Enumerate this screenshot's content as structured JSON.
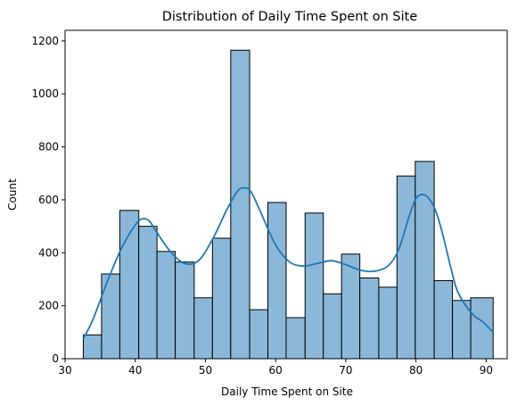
{
  "chart_data": {
    "type": "bar",
    "subtype": "histogram-with-kde",
    "title": "Distribution of Daily Time Spent on Site",
    "xlabel": "Daily Time Spent on Site",
    "ylabel": "Count",
    "xlim": [
      30,
      93
    ],
    "ylim": [
      0,
      1240
    ],
    "xticks": [
      30,
      40,
      50,
      60,
      70,
      80,
      90
    ],
    "yticks": [
      0,
      200,
      400,
      600,
      800,
      1000,
      1200
    ],
    "grid": false,
    "legend": "none",
    "bar_color": "#8bb8d9",
    "bar_edge_color": "#000000",
    "line_color": "#1f77b4",
    "bins": [
      {
        "x0": 32.6,
        "x1": 35.2,
        "count": 90
      },
      {
        "x0": 35.2,
        "x1": 37.8,
        "count": 320
      },
      {
        "x0": 37.8,
        "x1": 40.5,
        "count": 560
      },
      {
        "x0": 40.5,
        "x1": 43.1,
        "count": 500
      },
      {
        "x0": 43.1,
        "x1": 45.7,
        "count": 405
      },
      {
        "x0": 45.7,
        "x1": 48.4,
        "count": 365
      },
      {
        "x0": 48.4,
        "x1": 51.0,
        "count": 230
      },
      {
        "x0": 51.0,
        "x1": 53.6,
        "count": 455
      },
      {
        "x0": 53.6,
        "x1": 56.3,
        "count": 1165
      },
      {
        "x0": 56.3,
        "x1": 58.9,
        "count": 185
      },
      {
        "x0": 58.9,
        "x1": 61.5,
        "count": 590
      },
      {
        "x0": 61.5,
        "x1": 64.2,
        "count": 155
      },
      {
        "x0": 64.2,
        "x1": 66.8,
        "count": 550
      },
      {
        "x0": 66.8,
        "x1": 69.4,
        "count": 245
      },
      {
        "x0": 69.4,
        "x1": 72.0,
        "count": 395
      },
      {
        "x0": 72.0,
        "x1": 74.7,
        "count": 305
      },
      {
        "x0": 74.7,
        "x1": 77.3,
        "count": 270
      },
      {
        "x0": 77.3,
        "x1": 79.9,
        "count": 690
      },
      {
        "x0": 79.9,
        "x1": 82.6,
        "count": 745
      },
      {
        "x0": 82.6,
        "x1": 85.2,
        "count": 295
      },
      {
        "x0": 85.2,
        "x1": 87.8,
        "count": 220
      },
      {
        "x0": 87.8,
        "x1": 91.0,
        "count": 230
      }
    ],
    "kde": {
      "x": [
        32.6,
        34,
        36,
        38,
        40,
        41,
        42,
        43,
        45,
        47,
        49,
        51,
        53,
        54.5,
        55.5,
        56.5,
        58,
        60,
        62,
        64,
        66,
        68,
        70,
        72,
        74,
        76,
        77.5,
        79,
        80,
        81,
        82,
        83,
        84,
        85,
        86,
        88,
        89.5,
        91
      ],
      "y": [
        75,
        150,
        290,
        415,
        505,
        528,
        520,
        480,
        405,
        360,
        370,
        450,
        560,
        630,
        645,
        630,
        545,
        430,
        365,
        350,
        360,
        370,
        355,
        335,
        330,
        350,
        410,
        535,
        605,
        620,
        600,
        545,
        450,
        340,
        250,
        170,
        140,
        100
      ]
    }
  }
}
